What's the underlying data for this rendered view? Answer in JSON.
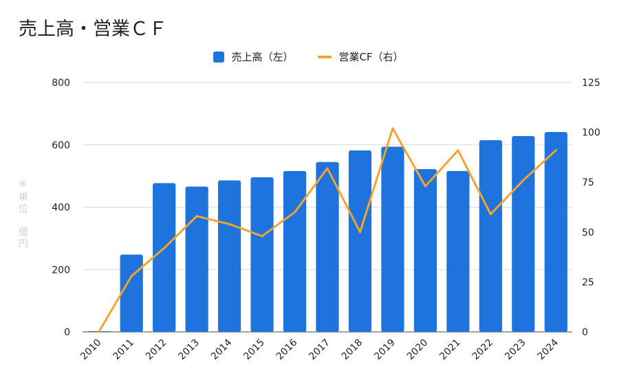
{
  "colors": {
    "bar": "#1f73dd",
    "line": "#f4a32f",
    "grid": "#d9d9d9"
  },
  "chart_data": {
    "type": "bar",
    "title": "売上高・営業ＣＦ",
    "unit_note": "※単位　億円",
    "legend_position": "top",
    "grid": true,
    "categories": [
      "2010",
      "2011",
      "2012",
      "2013",
      "2014",
      "2015",
      "2016",
      "2017",
      "2018",
      "2019",
      "2020",
      "2021",
      "2022",
      "2023",
      "2024"
    ],
    "series": [
      {
        "name": "売上高（左）",
        "type": "bar",
        "axis": "left",
        "values": [
          2,
          248,
          477,
          466,
          486,
          496,
          516,
          545,
          582,
          594,
          522,
          516,
          615,
          628,
          641
        ]
      },
      {
        "name": "営業CF（右）",
        "type": "line",
        "axis": "right",
        "values": [
          0,
          28,
          42,
          58,
          54,
          48,
          60,
          82,
          50,
          102,
          73,
          91,
          59,
          76,
          91
        ]
      }
    ],
    "y_left": {
      "min": 0,
      "max": 800,
      "ticks": [
        0,
        200,
        400,
        600,
        800
      ]
    },
    "y_right": {
      "min": 0,
      "max": 125,
      "ticks": [
        0,
        25,
        50,
        75,
        100,
        125
      ]
    }
  }
}
